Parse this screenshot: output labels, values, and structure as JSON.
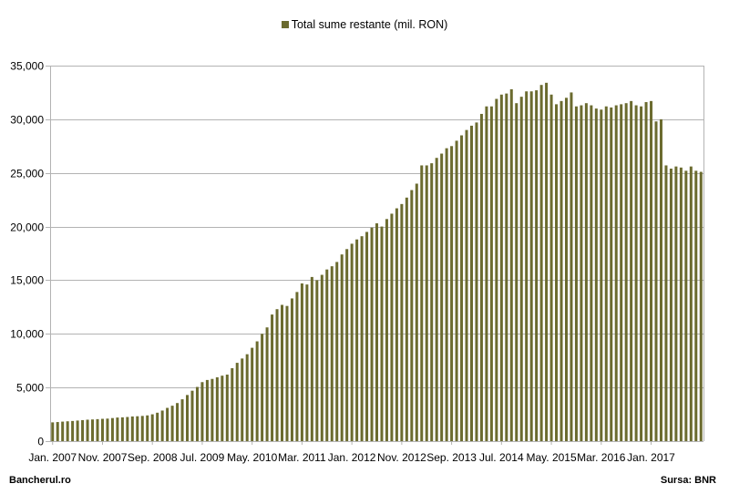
{
  "chart_data": {
    "type": "bar",
    "legend": "Total sume restante (mil. RON)",
    "legend_position": "top-center",
    "bar_color": "#6b6b2f",
    "grid": true,
    "ylim": [
      0,
      35000
    ],
    "yticks": [
      "0",
      "5,000",
      "10,000",
      "15,000",
      "20,000",
      "25,000",
      "30,000",
      "35,000"
    ],
    "xtick_labels": [
      "Jan. 2007",
      "Nov. 2007",
      "Sep. 2008",
      "Jul. 2009",
      "May. 2010",
      "Mar. 2011",
      "Jan. 2012",
      "Nov. 2012",
      "Sep. 2013",
      "Jul. 2014",
      "May. 2015",
      "Mar. 2016",
      "Jan. 2017"
    ],
    "xtick_step_months": 10,
    "start_month": "2007-01",
    "series": [
      {
        "name": "Total sume restante (mil. RON)",
        "values": [
          1750,
          1780,
          1820,
          1850,
          1880,
          1920,
          1960,
          2000,
          2020,
          2050,
          2080,
          2100,
          2150,
          2200,
          2220,
          2250,
          2300,
          2320,
          2350,
          2400,
          2500,
          2650,
          2850,
          3100,
          3300,
          3550,
          3900,
          4300,
          4700,
          5050,
          5500,
          5700,
          5800,
          5950,
          6100,
          6200,
          6800,
          7300,
          7700,
          8100,
          8700,
          9300,
          10000,
          10600,
          11800,
          12300,
          12700,
          12600,
          13300,
          13900,
          14700,
          14600,
          15300,
          15000,
          15500,
          16000,
          16300,
          16700,
          17400,
          17900,
          18400,
          18800,
          19100,
          19500,
          19900,
          20300,
          20000,
          20700,
          21200,
          21700,
          22100,
          22700,
          23400,
          24000,
          25700,
          25700,
          25900,
          26400,
          26800,
          27300,
          27500,
          28000,
          28500,
          29000,
          29400,
          29700,
          30500,
          31200,
          31200,
          31900,
          32300,
          32400,
          32800,
          31500,
          32100,
          32600,
          32600,
          32700,
          33200,
          33400,
          32300,
          31400,
          31700,
          32000,
          32500,
          31200,
          31300,
          31500,
          31300,
          31000,
          30900,
          31200,
          31100,
          31300,
          31400,
          31500,
          31700,
          31300,
          31200,
          31600,
          31700,
          29800,
          30000,
          25700,
          25400,
          25600,
          25500,
          25200,
          25600,
          25200,
          25100
        ]
      }
    ]
  },
  "footer": {
    "source_left": "Bancherul.ro",
    "source_right": "Sursa: BNR"
  }
}
